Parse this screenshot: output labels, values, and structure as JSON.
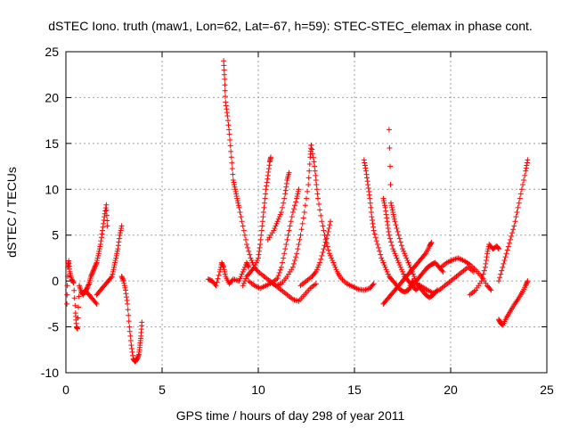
{
  "chart_data": {
    "type": "scatter",
    "title": "dSTEC Iono. truth (maw1, Lon=62, Lat=-67, h=59): STEC-STEC_elemax in phase cont.",
    "xlabel": "GPS time / hours of day 298 of year 2011",
    "ylabel": "dSTEC  / TECUs",
    "xlim": [
      0,
      25
    ],
    "ylim": [
      -10,
      25
    ],
    "x_ticks": [
      "0",
      "5",
      "10",
      "15",
      "20",
      "25"
    ],
    "y_ticks": [
      "-10",
      "-5",
      "0",
      "5",
      "10",
      "15",
      "20",
      "25"
    ],
    "grid": true,
    "legend": "none",
    "marker": "plus",
    "colors": {
      "series": "#ff0000",
      "grid": "#a0a0a0",
      "axis": "#000000"
    },
    "series": [
      {
        "points": [
          [
            0.05,
            -2.5
          ],
          [
            0.1,
            1.5
          ],
          [
            0.15,
            2.2
          ],
          [
            0.2,
            1.0
          ],
          [
            0.3,
            0.2
          ],
          [
            0.4,
            -0.2
          ],
          [
            0.5,
            -3.5
          ],
          [
            0.55,
            -5.0
          ],
          [
            0.6,
            -5.2
          ],
          [
            0.7,
            -0.5
          ],
          [
            0.8,
            -1.2
          ],
          [
            0.9,
            -1.5
          ],
          [
            1.0,
            -1.0
          ],
          [
            1.2,
            -1.5
          ],
          [
            1.4,
            -2.0
          ],
          [
            1.6,
            -2.5
          ]
        ]
      },
      {
        "points": [
          [
            1.0,
            -1.2
          ],
          [
            1.1,
            -0.8
          ],
          [
            1.2,
            -0.3
          ],
          [
            1.3,
            0.5
          ],
          [
            1.4,
            1.0
          ],
          [
            1.5,
            1.5
          ],
          [
            1.6,
            2.0
          ],
          [
            1.7,
            3.0
          ],
          [
            1.8,
            4.0
          ],
          [
            1.9,
            5.5
          ],
          [
            2.0,
            7.0
          ],
          [
            2.1,
            8.3
          ],
          [
            2.15,
            6.0
          ]
        ]
      },
      {
        "points": [
          [
            1.6,
            -1.5
          ],
          [
            1.8,
            -1.0
          ],
          [
            2.0,
            -0.5
          ],
          [
            2.2,
            0.0
          ],
          [
            2.4,
            0.5
          ],
          [
            2.5,
            1.5
          ],
          [
            2.6,
            2.5
          ],
          [
            2.7,
            3.5
          ],
          [
            2.8,
            5.0
          ],
          [
            2.9,
            6.0
          ]
        ]
      },
      {
        "points": [
          [
            2.9,
            0.5
          ],
          [
            3.0,
            0.0
          ],
          [
            3.1,
            -1.0
          ],
          [
            3.2,
            -2.5
          ],
          [
            3.3,
            -5.0
          ],
          [
            3.4,
            -7.0
          ],
          [
            3.5,
            -8.5
          ],
          [
            3.6,
            -8.8
          ],
          [
            3.7,
            -8.5
          ],
          [
            3.8,
            -8.0
          ],
          [
            3.85,
            -7.0
          ],
          [
            3.9,
            -6.0
          ],
          [
            3.95,
            -4.5
          ]
        ]
      },
      {
        "points": [
          [
            7.4,
            0.2
          ],
          [
            7.6,
            0.0
          ],
          [
            7.8,
            -0.5
          ],
          [
            8.0,
            1.0
          ],
          [
            8.1,
            2.0
          ],
          [
            8.2,
            1.5
          ],
          [
            8.3,
            0.5
          ],
          [
            8.5,
            -0.3
          ],
          [
            8.7,
            0.2
          ],
          [
            9.0,
            0.0
          ],
          [
            9.2,
            1.0
          ],
          [
            9.4,
            2.0
          ],
          [
            9.5,
            1.5
          ]
        ]
      },
      {
        "points": [
          [
            8.2,
            24.0
          ],
          [
            8.25,
            22.0
          ],
          [
            8.3,
            19.5
          ],
          [
            8.4,
            18.0
          ],
          [
            8.5,
            16.0
          ],
          [
            8.6,
            13.5
          ],
          [
            8.7,
            11.0
          ],
          [
            8.8,
            10.0
          ],
          [
            8.9,
            9.0
          ],
          [
            9.0,
            8.0
          ],
          [
            9.2,
            6.0
          ],
          [
            9.4,
            4.0
          ],
          [
            9.6,
            2.5
          ],
          [
            9.8,
            1.5
          ],
          [
            10.0,
            1.0
          ],
          [
            10.3,
            0.5
          ],
          [
            10.6,
            0.0
          ],
          [
            10.9,
            -0.5
          ],
          [
            11.2,
            -1.0
          ],
          [
            11.5,
            -1.5
          ],
          [
            11.8,
            -2.0
          ],
          [
            12.1,
            -2.2
          ],
          [
            12.4,
            -1.5
          ],
          [
            12.7,
            -0.8
          ],
          [
            13.0,
            -0.3
          ]
        ]
      },
      {
        "points": [
          [
            9.2,
            -0.5
          ],
          [
            9.4,
            0.5
          ],
          [
            9.6,
            1.0
          ],
          [
            9.8,
            1.5
          ],
          [
            10.0,
            2.5
          ],
          [
            10.1,
            4.0
          ],
          [
            10.2,
            6.0
          ],
          [
            10.3,
            8.0
          ],
          [
            10.4,
            10.0
          ],
          [
            10.5,
            11.5
          ],
          [
            10.6,
            13.0
          ],
          [
            10.65,
            13.5
          ]
        ]
      },
      {
        "points": [
          [
            9.5,
            0.0
          ],
          [
            9.8,
            -0.5
          ],
          [
            10.1,
            -0.8
          ],
          [
            10.4,
            -0.5
          ],
          [
            10.7,
            -0.2
          ],
          [
            11.0,
            0.3
          ],
          [
            11.2,
            1.5
          ],
          [
            11.4,
            3.5
          ],
          [
            11.6,
            5.5
          ],
          [
            11.8,
            7.5
          ],
          [
            12.0,
            9.0
          ],
          [
            12.1,
            10.0
          ]
        ]
      },
      {
        "points": [
          [
            10.5,
            4.5
          ],
          [
            10.8,
            5.5
          ],
          [
            11.0,
            6.5
          ],
          [
            11.2,
            7.5
          ],
          [
            11.4,
            9.5
          ],
          [
            11.5,
            11.0
          ],
          [
            11.6,
            11.8
          ]
        ]
      },
      {
        "points": [
          [
            10.6,
            0.0
          ],
          [
            10.9,
            -0.5
          ],
          [
            11.2,
            -0.3
          ],
          [
            11.5,
            0.5
          ],
          [
            11.8,
            1.5
          ],
          [
            12.0,
            3.0
          ],
          [
            12.2,
            5.0
          ],
          [
            12.4,
            7.5
          ],
          [
            12.6,
            10.5
          ],
          [
            12.7,
            13.5
          ],
          [
            12.75,
            14.8
          ]
        ]
      },
      {
        "points": [
          [
            12.75,
            14.8
          ],
          [
            12.9,
            13.0
          ],
          [
            13.0,
            11.0
          ],
          [
            13.1,
            9.0
          ],
          [
            13.3,
            6.5
          ],
          [
            13.5,
            4.5
          ],
          [
            13.7,
            3.0
          ],
          [
            13.9,
            2.0
          ],
          [
            14.1,
            1.0
          ],
          [
            14.3,
            0.3
          ],
          [
            14.6,
            -0.3
          ],
          [
            14.9,
            -0.6
          ],
          [
            15.2,
            -0.9
          ],
          [
            15.5,
            -1.0
          ],
          [
            15.8,
            -0.8
          ],
          [
            16.0,
            -0.3
          ]
        ]
      },
      {
        "points": [
          [
            12.2,
            -0.5
          ],
          [
            12.5,
            0.0
          ],
          [
            12.8,
            0.5
          ],
          [
            13.0,
            1.0
          ],
          [
            13.2,
            2.0
          ],
          [
            13.4,
            3.5
          ],
          [
            13.6,
            5.0
          ],
          [
            13.75,
            6.5
          ]
        ]
      },
      {
        "points": [
          [
            15.5,
            13.2
          ],
          [
            15.6,
            12.0
          ],
          [
            15.7,
            10.5
          ],
          [
            15.8,
            9.0
          ],
          [
            15.9,
            7.0
          ],
          [
            16.0,
            5.5
          ],
          [
            16.2,
            4.0
          ],
          [
            16.4,
            2.5
          ],
          [
            16.6,
            1.5
          ],
          [
            16.8,
            0.5
          ],
          [
            17.0,
            0.0
          ],
          [
            17.2,
            -0.5
          ],
          [
            17.4,
            -1.0
          ],
          [
            17.6,
            -1.2
          ],
          [
            17.8,
            -1.0
          ],
          [
            18.0,
            0.0
          ]
        ]
      },
      {
        "points": [
          [
            16.5,
            9.0
          ],
          [
            16.6,
            8.0
          ],
          [
            16.7,
            6.5
          ],
          [
            16.8,
            5.0
          ],
          [
            17.0,
            3.5
          ],
          [
            17.2,
            2.5
          ],
          [
            17.4,
            1.5
          ],
          [
            17.6,
            0.5
          ],
          [
            17.8,
            0.0
          ],
          [
            18.0,
            -0.5
          ],
          [
            18.2,
            -1.0
          ],
          [
            18.4,
            -0.5
          ]
        ]
      },
      {
        "points": [
          [
            16.8,
            16.5
          ],
          [
            16.9,
            8.5
          ],
          [
            17.0,
            7.5
          ],
          [
            17.1,
            6.5
          ],
          [
            17.3,
            5.0
          ],
          [
            17.5,
            3.5
          ],
          [
            17.7,
            2.5
          ],
          [
            17.9,
            1.5
          ],
          [
            18.1,
            0.5
          ],
          [
            18.3,
            -0.5
          ],
          [
            18.5,
            -1.0
          ],
          [
            18.7,
            -1.5
          ],
          [
            18.9,
            -1.8
          ],
          [
            19.1,
            -1.5
          ],
          [
            19.3,
            -1.0
          ]
        ]
      },
      {
        "points": [
          [
            16.5,
            -2.5
          ],
          [
            16.7,
            -2.0
          ],
          [
            16.9,
            -1.5
          ],
          [
            17.1,
            -1.0
          ],
          [
            17.3,
            -0.5
          ],
          [
            17.5,
            0.0
          ],
          [
            17.7,
            0.5
          ],
          [
            17.9,
            1.0
          ],
          [
            18.1,
            1.5
          ],
          [
            18.3,
            2.0
          ],
          [
            18.5,
            2.5
          ],
          [
            18.7,
            3.0
          ],
          [
            18.9,
            3.8
          ],
          [
            19.0,
            4.2
          ]
        ]
      },
      {
        "points": [
          [
            17.8,
            -1.0
          ],
          [
            18.0,
            -0.5
          ],
          [
            18.2,
            0.0
          ],
          [
            18.4,
            0.5
          ],
          [
            18.6,
            1.0
          ],
          [
            18.8,
            1.5
          ],
          [
            19.0,
            1.8
          ],
          [
            19.2,
            2.0
          ],
          [
            19.4,
            1.5
          ],
          [
            19.6,
            1.0
          ]
        ]
      },
      {
        "points": [
          [
            18.0,
            0.0
          ],
          [
            18.2,
            -0.3
          ],
          [
            18.5,
            -0.6
          ],
          [
            18.8,
            -1.0
          ],
          [
            19.1,
            -1.3
          ],
          [
            19.4,
            -1.0
          ],
          [
            19.7,
            -0.5
          ],
          [
            20.0,
            0.0
          ],
          [
            20.3,
            0.5
          ],
          [
            20.6,
            1.0
          ],
          [
            20.9,
            1.5
          ],
          [
            21.2,
            1.0
          ]
        ]
      },
      {
        "points": [
          [
            19.5,
            1.5
          ],
          [
            19.8,
            2.0
          ],
          [
            20.1,
            2.3
          ],
          [
            20.4,
            2.5
          ],
          [
            20.7,
            2.2
          ],
          [
            21.0,
            1.8
          ],
          [
            21.3,
            1.2
          ],
          [
            21.6,
            0.5
          ],
          [
            21.9,
            -0.5
          ],
          [
            22.1,
            -1.0
          ]
        ]
      },
      {
        "points": [
          [
            21.0,
            -1.5
          ],
          [
            21.3,
            -1.0
          ],
          [
            21.6,
            0.0
          ],
          [
            21.8,
            1.5
          ],
          [
            21.9,
            3.0
          ],
          [
            22.0,
            4.0
          ],
          [
            22.2,
            3.5
          ],
          [
            22.4,
            3.8
          ],
          [
            22.5,
            3.5
          ]
        ]
      },
      {
        "points": [
          [
            22.5,
            0.0
          ],
          [
            22.7,
            1.5
          ],
          [
            22.9,
            3.0
          ],
          [
            23.1,
            4.5
          ],
          [
            23.3,
            6.0
          ],
          [
            23.5,
            8.0
          ],
          [
            23.7,
            10.0
          ],
          [
            23.9,
            12.0
          ],
          [
            24.0,
            13.2
          ]
        ]
      },
      {
        "points": [
          [
            22.5,
            -4.2
          ],
          [
            22.6,
            -4.6
          ],
          [
            22.7,
            -4.8
          ],
          [
            22.9,
            -4.0
          ],
          [
            23.1,
            -3.3
          ],
          [
            23.3,
            -2.6
          ],
          [
            23.5,
            -2.0
          ],
          [
            23.7,
            -1.3
          ],
          [
            23.9,
            -0.5
          ],
          [
            24.0,
            0.0
          ]
        ]
      }
    ]
  }
}
